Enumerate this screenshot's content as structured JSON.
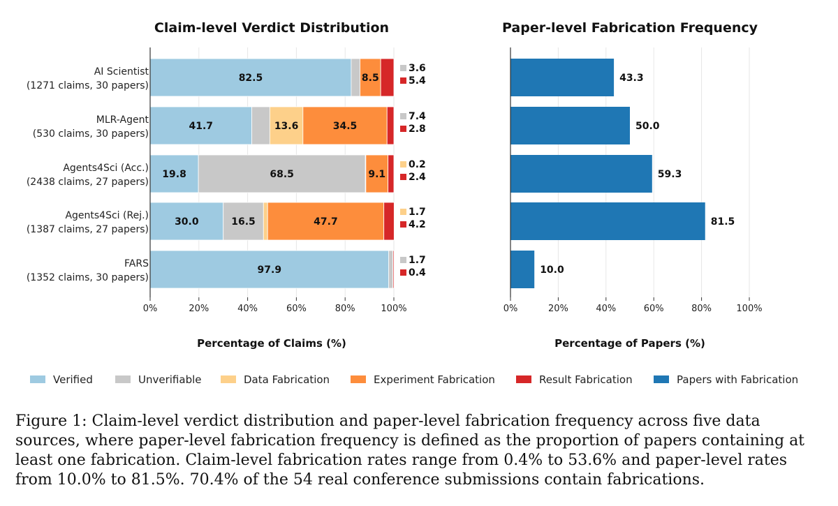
{
  "chart_data": [
    {
      "type": "bar",
      "orientation": "horizontal",
      "stacked": true,
      "title": "Claim-level Verdict Distribution",
      "xlabel": "Percentage of Claims (%)",
      "ylabel": "",
      "xlim": [
        0,
        100
      ],
      "xticks": [
        "0%",
        "20%",
        "40%",
        "60%",
        "80%",
        "100%"
      ],
      "categories": [
        [
          "AI Scientist",
          "(1271 claims, 30 papers)"
        ],
        [
          "MLR-Agent",
          "(530 claims, 30 papers)"
        ],
        [
          "Agents4Sci (Acc.)",
          "(2438 claims, 27 papers)"
        ],
        [
          "Agents4Sci (Rej.)",
          "(1387 claims, 27 papers)"
        ],
        [
          "FARS",
          "(1352 claims, 30 papers)"
        ]
      ],
      "series": [
        {
          "name": "Verified",
          "color": "#9ecae1",
          "values": [
            82.5,
            41.7,
            19.8,
            30.0,
            97.9
          ]
        },
        {
          "name": "Unverifiable",
          "color": "#c8c8c8",
          "values": [
            3.6,
            7.4,
            68.5,
            16.5,
            1.7
          ]
        },
        {
          "name": "Data Fabrication",
          "color": "#fdd08a",
          "values": [
            0.0,
            13.6,
            0.2,
            1.7,
            0.0
          ]
        },
        {
          "name": "Experiment Fabrication",
          "color": "#fd8d3c",
          "values": [
            8.5,
            34.5,
            9.1,
            47.7,
            0.0
          ]
        },
        {
          "name": "Result Fabrication",
          "color": "#d62728",
          "values": [
            5.4,
            2.8,
            2.4,
            4.2,
            0.4
          ]
        }
      ],
      "in_bar_labels": [
        [
          {
            "series": 0,
            "text": "82.5"
          },
          {
            "series": 3,
            "text": "8.5"
          }
        ],
        [
          {
            "series": 0,
            "text": "41.7"
          },
          {
            "series": 2,
            "text": "13.6"
          },
          {
            "series": 3,
            "text": "34.5"
          }
        ],
        [
          {
            "series": 0,
            "text": "19.8"
          },
          {
            "series": 1,
            "text": "68.5"
          },
          {
            "series": 3,
            "text": "9.1"
          }
        ],
        [
          {
            "series": 0,
            "text": "30.0"
          },
          {
            "series": 1,
            "text": "16.5"
          },
          {
            "series": 3,
            "text": "47.7"
          }
        ],
        [
          {
            "series": 0,
            "text": "97.9"
          }
        ]
      ],
      "side_labels": [
        [
          {
            "series": 1,
            "text": "3.6"
          },
          {
            "series": 4,
            "text": "5.4"
          }
        ],
        [
          {
            "series": 1,
            "text": "7.4"
          },
          {
            "series": 4,
            "text": "2.8"
          }
        ],
        [
          {
            "series": 2,
            "text": "0.2"
          },
          {
            "series": 4,
            "text": "2.4"
          }
        ],
        [
          {
            "series": 2,
            "text": "1.7"
          },
          {
            "series": 4,
            "text": "4.2"
          }
        ],
        [
          {
            "series": 1,
            "text": "1.7"
          },
          {
            "series": 4,
            "text": "0.4"
          }
        ]
      ],
      "grid": true
    },
    {
      "type": "bar",
      "orientation": "horizontal",
      "title": "Paper-level Fabrication Frequency",
      "xlabel": "Percentage of Papers (%)",
      "ylabel": "",
      "xlim": [
        0,
        100
      ],
      "xticks": [
        "0%",
        "20%",
        "40%",
        "60%",
        "80%",
        "100%"
      ],
      "series": [
        {
          "name": "Papers with Fabrication",
          "color": "#1f77b4",
          "values": [
            43.3,
            50.0,
            59.3,
            81.5,
            10.0
          ]
        }
      ],
      "value_labels": [
        "43.3",
        "50.0",
        "59.3",
        "81.5",
        "10.0"
      ],
      "grid": true
    }
  ],
  "legend": {
    "placement": "bottom",
    "items": [
      {
        "label": "Verified",
        "color": "#9ecae1"
      },
      {
        "label": "Unverifiable",
        "color": "#c8c8c8"
      },
      {
        "label": "Data Fabrication",
        "color": "#fdd08a"
      },
      {
        "label": "Experiment Fabrication",
        "color": "#fd8d3c"
      },
      {
        "label": "Result Fabrication",
        "color": "#d62728"
      },
      {
        "label": "Papers with Fabrication",
        "color": "#1f77b4"
      }
    ]
  },
  "caption": "Figure 1: Claim-level verdict distribution and paper-level fabrication frequency across five data sources, where paper-level fabrication frequency is defined as the proportion of papers containing at least one fabrication. Claim-level fabrication rates range from 0.4% to 53.6% and paper-level rates from 10.0% to 81.5%. 70.4% of the 54 real conference submissions contain fabrications."
}
